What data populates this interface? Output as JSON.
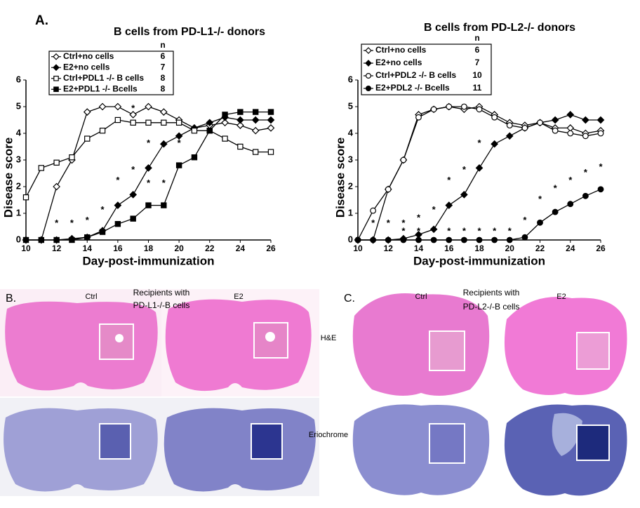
{
  "panel_a_label": "A.",
  "chart_data": [
    {
      "type": "line",
      "title": "B cells from PD-L1-/- donors",
      "x_label": "Day-post-immunization",
      "y_label": "Disease score",
      "x": [
        10,
        11,
        12,
        13,
        14,
        15,
        16,
        17,
        18,
        19,
        20,
        21,
        22,
        23,
        24,
        25,
        26
      ],
      "xlim": [
        10,
        26
      ],
      "xticks": [
        10,
        12,
        14,
        16,
        18,
        20,
        22,
        24,
        26
      ],
      "ylim": [
        0,
        6
      ],
      "yticks": [
        0,
        1,
        2,
        3,
        4,
        5,
        6
      ],
      "legend_header": "n",
      "series": [
        {
          "name": "Ctrl+no cells",
          "n": 6,
          "marker": "diamond-open",
          "color": "#000000",
          "values": [
            0,
            0,
            2.0,
            3.0,
            4.8,
            5.0,
            5.0,
            4.7,
            5.0,
            4.8,
            4.5,
            4.2,
            4.3,
            4.4,
            4.3,
            4.1,
            4.2
          ]
        },
        {
          "name": "E2+no cells",
          "n": 7,
          "marker": "diamond-filled",
          "color": "#000000",
          "values": [
            0,
            0,
            0,
            0.05,
            0.1,
            0.35,
            1.3,
            1.7,
            2.7,
            3.6,
            3.9,
            4.2,
            4.4,
            4.6,
            4.5,
            4.5,
            4.5
          ]
        },
        {
          "name": "Ctrl+PDL1 -/- B cells",
          "n": 8,
          "marker": "square-open",
          "color": "#000000",
          "values": [
            1.6,
            2.7,
            2.9,
            3.1,
            3.8,
            4.1,
            4.5,
            4.4,
            4.4,
            4.4,
            4.4,
            4.1,
            4.1,
            3.8,
            3.5,
            3.3,
            3.3
          ]
        },
        {
          "name": "E2+PDL1 -/- Bcells",
          "n": 8,
          "marker": "square-filled",
          "color": "#000000",
          "values": [
            0,
            0,
            0,
            0,
            0.1,
            0.3,
            0.6,
            0.8,
            1.3,
            1.3,
            2.8,
            3.1,
            4.1,
            4.7,
            4.8,
            4.8,
            4.8
          ]
        }
      ],
      "annotations": [
        {
          "x": 12,
          "y": 0.3,
          "text": "*"
        },
        {
          "x": 13,
          "y": 0.3,
          "text": "*"
        },
        {
          "x": 14,
          "y": 0.4,
          "text": "*"
        },
        {
          "x": 15,
          "y": 0.8,
          "text": "*"
        },
        {
          "x": 16,
          "y": 1.9,
          "text": "*"
        },
        {
          "x": 16,
          "y": 0.9,
          "text": "*"
        },
        {
          "x": 17,
          "y": 2.3,
          "text": "*"
        },
        {
          "x": 18,
          "y": 3.3,
          "text": "*"
        },
        {
          "x": 18,
          "y": 1.8,
          "text": "*"
        },
        {
          "x": 19,
          "y": 1.8,
          "text": "*"
        },
        {
          "x": 20,
          "y": 3.3,
          "text": "*"
        },
        {
          "x": 17,
          "y": 4.6,
          "text": "*"
        }
      ]
    },
    {
      "type": "line",
      "title": "B cells from PD-L2-/- donors",
      "x_label": "Day-post-immunization",
      "y_label": "Disease score",
      "x": [
        10,
        11,
        12,
        13,
        14,
        15,
        16,
        17,
        18,
        19,
        20,
        21,
        22,
        23,
        24,
        25,
        26
      ],
      "xlim": [
        10,
        26
      ],
      "xticks": [
        10,
        12,
        14,
        16,
        18,
        20,
        22,
        24,
        26
      ],
      "ylim": [
        0,
        6
      ],
      "yticks": [
        0,
        1,
        2,
        3,
        4,
        5,
        6
      ],
      "legend_header": "n",
      "series": [
        {
          "name": "Ctrl+no cells",
          "n": 6,
          "marker": "diamond-open",
          "color": "#000000",
          "values": [
            0,
            0,
            1.9,
            3.0,
            4.7,
            4.9,
            5.0,
            4.9,
            5.0,
            4.7,
            4.4,
            4.3,
            4.4,
            4.2,
            4.2,
            4.0,
            4.1
          ]
        },
        {
          "name": "E2+no cells",
          "n": 7,
          "marker": "diamond-filled",
          "color": "#000000",
          "values": [
            0,
            0,
            0,
            0.05,
            0.2,
            0.4,
            1.3,
            1.7,
            2.7,
            3.6,
            3.9,
            4.2,
            4.4,
            4.5,
            4.7,
            4.5,
            4.5
          ]
        },
        {
          "name": "Ctrl+PDL2 -/- B cells",
          "n": 10,
          "marker": "circle-open",
          "color": "#000000",
          "values": [
            0,
            1.1,
            1.9,
            3.0,
            4.6,
            4.9,
            5.0,
            5.0,
            4.9,
            4.6,
            4.3,
            4.2,
            4.4,
            4.1,
            4.0,
            3.9,
            4.0
          ]
        },
        {
          "name": "E2+PDL2 -/- Bcells",
          "n": 11,
          "marker": "circle-filled",
          "color": "#000000",
          "values": [
            0,
            0,
            0,
            0,
            0,
            0,
            0,
            0,
            0,
            0,
            0,
            0.1,
            0.65,
            1.05,
            1.35,
            1.65,
            1.9
          ]
        }
      ],
      "annotations": [
        {
          "x": 11,
          "y": 0.3,
          "text": "*"
        },
        {
          "x": 12,
          "y": 0.3,
          "text": "*"
        },
        {
          "x": 13,
          "y": 0.3,
          "text": "*"
        },
        {
          "x": 14,
          "y": 0.5,
          "text": "*"
        },
        {
          "x": 15,
          "y": 0.8,
          "text": "*"
        },
        {
          "x": 16,
          "y": 1.9,
          "text": "*"
        },
        {
          "x": 17,
          "y": 2.3,
          "text": "*"
        },
        {
          "x": 18,
          "y": 3.3,
          "text": "*"
        },
        {
          "x": 13,
          "y": 0.0,
          "text": "*"
        },
        {
          "x": 14,
          "y": 0.0,
          "text": "*"
        },
        {
          "x": 15,
          "y": 0.0,
          "text": "*"
        },
        {
          "x": 16,
          "y": 0.0,
          "text": "*"
        },
        {
          "x": 17,
          "y": 0.0,
          "text": "*"
        },
        {
          "x": 18,
          "y": 0.0,
          "text": "*"
        },
        {
          "x": 19,
          "y": 0.0,
          "text": "*"
        },
        {
          "x": 20,
          "y": 0.0,
          "text": "*"
        },
        {
          "x": 21,
          "y": 0.4,
          "text": "*"
        },
        {
          "x": 22,
          "y": 1.2,
          "text": "*"
        },
        {
          "x": 23,
          "y": 1.6,
          "text": "*"
        },
        {
          "x": 24,
          "y": 1.9,
          "text": "*"
        },
        {
          "x": 25,
          "y": 2.2,
          "text": "*"
        },
        {
          "x": 26,
          "y": 2.4,
          "text": "*"
        }
      ]
    }
  ],
  "histology": {
    "panel_b": {
      "label": "B.",
      "ctrl": "Ctrl",
      "e2": "E2",
      "heading": "Recipients with",
      "subheading": "PD-L1-/-B cells"
    },
    "panel_c": {
      "label": "C.",
      "ctrl": "Ctrl",
      "e2": "E2",
      "heading": "Recipients with",
      "subheading": "PD-L2-/-B cells"
    },
    "row_he": "H&E",
    "row_erio": "Eriochrome"
  }
}
